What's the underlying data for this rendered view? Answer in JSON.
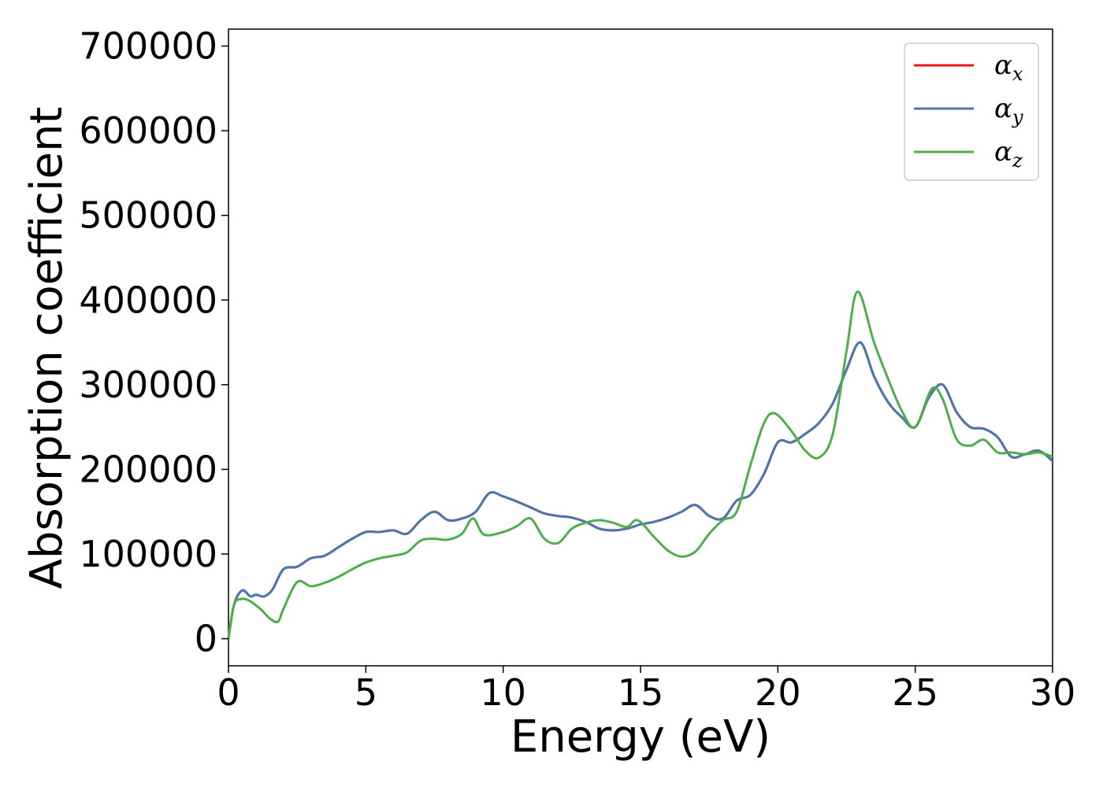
{
  "chart_data": {
    "type": "line",
    "xlabel": "Energy (eV)",
    "ylabel": "Absorption coefficient",
    "xlim": [
      0,
      30
    ],
    "ylim": [
      -32000,
      720000
    ],
    "x_ticks": [
      0,
      5,
      10,
      15,
      20,
      25,
      30
    ],
    "x_tick_labels": [
      "0",
      "5",
      "10",
      "15",
      "20",
      "25",
      "30"
    ],
    "y_ticks": [
      0,
      100000,
      200000,
      300000,
      400000,
      500000,
      600000,
      700000
    ],
    "y_tick_labels": [
      "0",
      "100000",
      "200000",
      "300000",
      "400000",
      "500000",
      "600000",
      "700000"
    ],
    "grid": false,
    "legend_position": "top-right",
    "series": [
      {
        "name": "α",
        "subscript": "x",
        "color": "#e41a1c",
        "x": [
          0,
          0.2,
          0.5,
          0.8,
          1.0,
          1.3,
          1.6,
          2.0,
          2.5,
          3.0,
          3.5,
          4.0,
          4.5,
          5.0,
          5.5,
          6.0,
          6.5,
          7.0,
          7.5,
          8.0,
          8.5,
          9.0,
          9.5,
          10.0,
          10.5,
          11.0,
          11.5,
          12.0,
          12.5,
          13.0,
          13.5,
          14.0,
          14.5,
          15.0,
          15.5,
          16.0,
          16.5,
          17.0,
          17.5,
          18.0,
          18.5,
          19.0,
          19.5,
          20.0,
          20.5,
          21.0,
          21.5,
          22.0,
          22.5,
          23.0,
          23.5,
          24.0,
          24.5,
          25.0,
          25.5,
          26.0,
          26.5,
          27.0,
          27.5,
          28.0,
          28.5,
          29.0,
          29.5,
          30.0
        ],
        "y": [
          0,
          40000,
          57000,
          50000,
          52000,
          50000,
          58000,
          82000,
          85000,
          95000,
          98000,
          108000,
          118000,
          126000,
          126000,
          128000,
          124000,
          140000,
          150000,
          140000,
          142000,
          150000,
          172000,
          168000,
          162000,
          155000,
          148000,
          145000,
          143000,
          138000,
          130000,
          128000,
          130000,
          135000,
          138000,
          143000,
          150000,
          158000,
          145000,
          142000,
          163000,
          170000,
          195000,
          232000,
          232000,
          242000,
          255000,
          278000,
          318000,
          350000,
          310000,
          280000,
          262000,
          250000,
          285000,
          300000,
          268000,
          250000,
          248000,
          238000,
          215000,
          218000,
          222000,
          210000
        ]
      },
      {
        "name": "α",
        "subscript": "y",
        "color": "#4a78ac",
        "x": [
          0,
          0.2,
          0.5,
          0.8,
          1.0,
          1.3,
          1.6,
          2.0,
          2.5,
          3.0,
          3.5,
          4.0,
          4.5,
          5.0,
          5.5,
          6.0,
          6.5,
          7.0,
          7.5,
          8.0,
          8.5,
          9.0,
          9.5,
          10.0,
          10.5,
          11.0,
          11.5,
          12.0,
          12.5,
          13.0,
          13.5,
          14.0,
          14.5,
          15.0,
          15.5,
          16.0,
          16.5,
          17.0,
          17.5,
          18.0,
          18.5,
          19.0,
          19.5,
          20.0,
          20.5,
          21.0,
          21.5,
          22.0,
          22.5,
          23.0,
          23.5,
          24.0,
          24.5,
          25.0,
          25.5,
          26.0,
          26.5,
          27.0,
          27.5,
          28.0,
          28.5,
          29.0,
          29.5,
          30.0
        ],
        "y": [
          0,
          40000,
          57000,
          50000,
          52000,
          50000,
          58000,
          82000,
          85000,
          95000,
          98000,
          108000,
          118000,
          126000,
          126000,
          128000,
          124000,
          140000,
          150000,
          140000,
          142000,
          150000,
          172000,
          168000,
          162000,
          155000,
          148000,
          145000,
          143000,
          138000,
          130000,
          128000,
          130000,
          135000,
          138000,
          143000,
          150000,
          158000,
          145000,
          142000,
          163000,
          170000,
          195000,
          232000,
          232000,
          242000,
          255000,
          278000,
          318000,
          350000,
          310000,
          280000,
          262000,
          250000,
          285000,
          300000,
          268000,
          250000,
          248000,
          238000,
          215000,
          218000,
          222000,
          210000
        ]
      },
      {
        "name": "α",
        "subscript": "z",
        "color": "#4daf4a",
        "x": [
          0,
          0.2,
          0.5,
          0.8,
          1.2,
          1.5,
          1.8,
          2.0,
          2.5,
          3.0,
          3.5,
          4.0,
          4.5,
          5.0,
          5.5,
          6.0,
          6.5,
          7.0,
          7.5,
          8.0,
          8.5,
          8.9,
          9.3,
          10.0,
          10.5,
          11.0,
          11.5,
          12.0,
          12.5,
          13.0,
          13.5,
          14.0,
          14.5,
          14.9,
          15.5,
          16.0,
          16.5,
          17.0,
          17.5,
          18.0,
          18.5,
          19.0,
          19.5,
          19.9,
          20.5,
          21.0,
          21.5,
          22.0,
          22.5,
          22.9,
          23.5,
          24.0,
          24.5,
          25.0,
          25.6,
          26.0,
          26.5,
          27.0,
          27.5,
          28.0,
          28.5,
          29.0,
          29.5,
          30.0
        ],
        "y": [
          0,
          40000,
          47000,
          44000,
          34000,
          24000,
          20000,
          35000,
          67000,
          62000,
          66000,
          73000,
          82000,
          90000,
          95000,
          98000,
          102000,
          116000,
          118000,
          117000,
          124000,
          142000,
          123000,
          126000,
          133000,
          142000,
          118000,
          113000,
          130000,
          137000,
          140000,
          137000,
          132000,
          140000,
          120000,
          104000,
          97000,
          103000,
          124000,
          140000,
          150000,
          205000,
          255000,
          266000,
          245000,
          222000,
          214000,
          242000,
          340000,
          410000,
          350000,
          308000,
          270000,
          250000,
          295000,
          283000,
          236000,
          228000,
          235000,
          220000,
          220000,
          218000,
          220000,
          215000
        ]
      }
    ]
  }
}
